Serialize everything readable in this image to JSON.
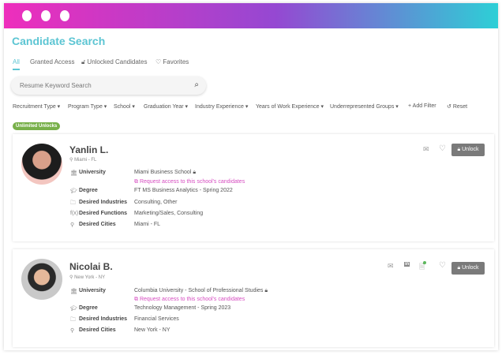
{
  "window": {
    "gradient": [
      "#ee2ebc",
      "#9548d2",
      "#2dcfd6"
    ]
  },
  "page_title": "Candidate Search",
  "tabs": [
    {
      "label": "All",
      "active": true
    },
    {
      "label": "Granted Access"
    },
    {
      "label": "Unlocked Candidates",
      "icon": "lock-icon"
    },
    {
      "label": "Favorites",
      "icon": "heart-icon"
    }
  ],
  "search": {
    "placeholder": "Resume Keyword Search"
  },
  "filters": [
    "Recruitment Type",
    "Program Type",
    "School",
    "Graduation Year",
    "Industry Experience",
    "Years of Work Experience",
    "Underrepresented Groups"
  ],
  "add_filter": "+ Add Filter",
  "reset": "Reset",
  "badge": "Unlimited Unlocks",
  "unlock_label": "Unlock",
  "labels": {
    "university": "University",
    "degree": "Degree",
    "industries": "Desired Industries",
    "functions": "Desired Functions",
    "cities": "Desired Cities"
  },
  "request_access": "Request access to this school's candidates",
  "candidates": [
    {
      "name": "Yanlin L.",
      "location": "Miami - FL",
      "university": "Miami Business School",
      "degree": "FT MS Business Analytics - Spring 2022",
      "industries": "Consulting, Other",
      "functions": "Marketing/Sales, Consulting",
      "cities": "Miami - FL"
    },
    {
      "name": "Nicolai B.",
      "location": "New York - NY",
      "university": "Columbia University - School of Professional Studies",
      "degree": "Technology Management - Spring 2023",
      "industries": "Financial Services",
      "cities": "New York - NY"
    }
  ]
}
